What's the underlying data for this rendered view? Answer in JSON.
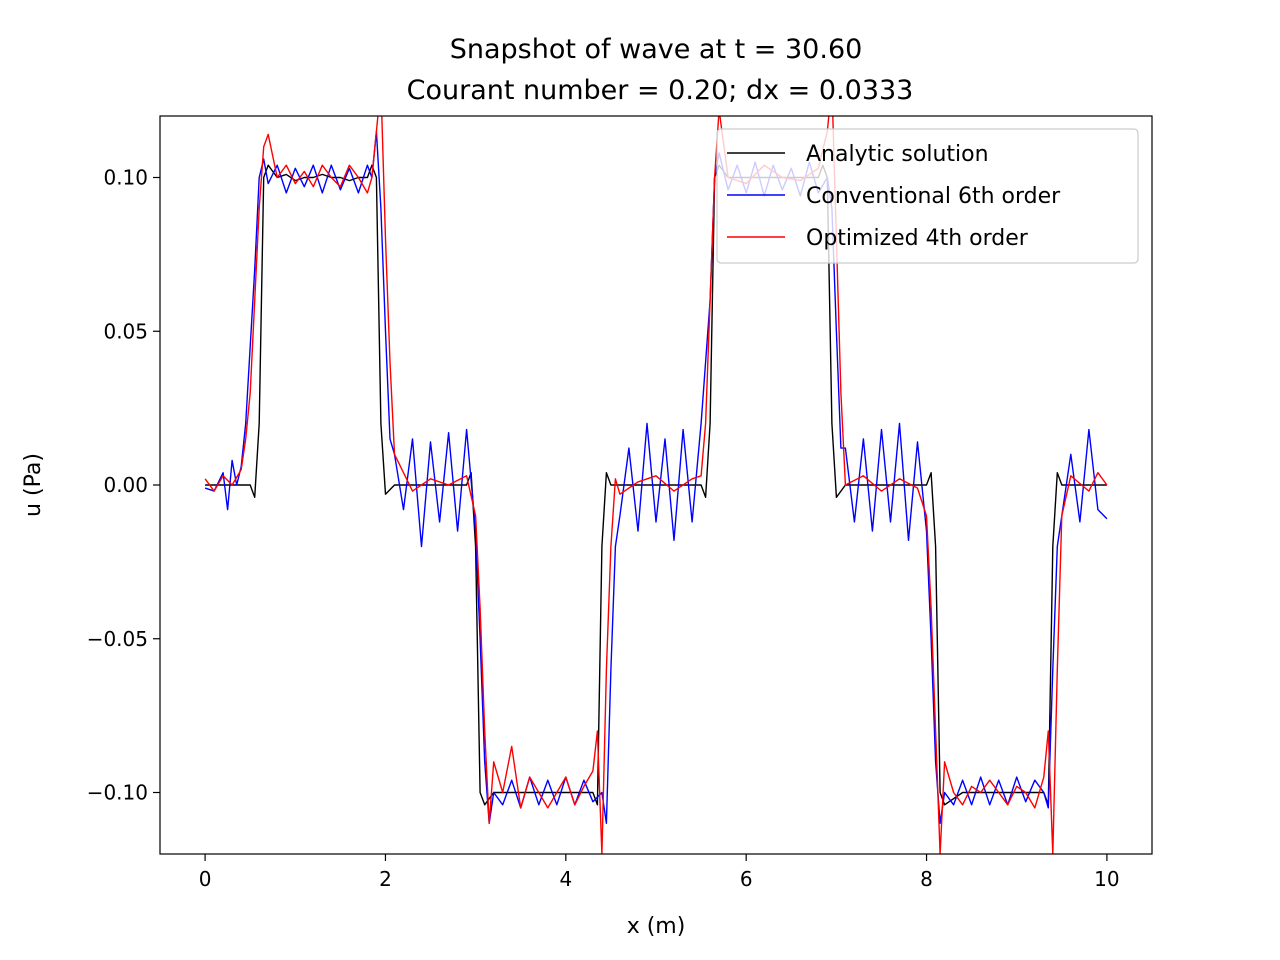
{
  "chart_data": {
    "type": "line",
    "title": "Snapshot of wave at t = 30.60",
    "subtitle": "Courant number = 0.20; dx = 0.0333",
    "xlabel": "x (m)",
    "ylabel": "u (Pa)",
    "xlim": [
      -0.5,
      10.5
    ],
    "ylim": [
      -0.12,
      0.12
    ],
    "xticks": [
      0,
      2,
      4,
      6,
      8,
      10
    ],
    "xtick_labels": [
      "0",
      "2",
      "4",
      "6",
      "8",
      "10"
    ],
    "yticks": [
      0.1,
      0.05,
      0.0,
      -0.05,
      -0.1
    ],
    "ytick_labels": [
      "0.10",
      "0.05",
      "0.00",
      "−0.05",
      "−0.10"
    ],
    "grid": false,
    "legend_position": "top-right",
    "series": [
      {
        "name": "Analytic solution",
        "color": "#000000",
        "x": [
          0.0,
          0.1,
          0.2,
          0.3,
          0.4,
          0.5,
          0.55,
          0.6,
          0.65,
          0.7,
          0.8,
          0.9,
          1.0,
          1.1,
          1.2,
          1.3,
          1.4,
          1.5,
          1.6,
          1.7,
          1.8,
          1.85,
          1.9,
          1.95,
          2.0,
          2.1,
          2.2,
          2.4,
          2.6,
          2.8,
          2.9,
          2.95,
          3.0,
          3.05,
          3.1,
          3.2,
          3.4,
          3.6,
          3.8,
          4.0,
          4.2,
          4.3,
          4.35,
          4.4,
          4.45,
          4.5,
          4.6,
          4.8,
          5.0,
          5.2,
          5.4,
          5.5,
          5.55,
          5.6,
          5.65,
          5.7,
          5.8,
          6.0,
          6.2,
          6.4,
          6.6,
          6.8,
          6.85,
          6.9,
          6.95,
          7.0,
          7.1,
          7.3,
          7.5,
          7.7,
          7.9,
          8.0,
          8.05,
          8.1,
          8.15,
          8.2,
          8.4,
          8.6,
          8.8,
          9.0,
          9.2,
          9.3,
          9.35,
          9.4,
          9.45,
          9.5,
          9.6,
          9.8,
          10.0
        ],
        "values": [
          0.0,
          0.0,
          0.0,
          0.0,
          0.0,
          0.0,
          -0.004,
          0.02,
          0.1,
          0.104,
          0.1,
          0.101,
          0.099,
          0.1,
          0.1,
          0.101,
          0.1,
          0.1,
          0.099,
          0.1,
          0.1,
          0.104,
          0.1,
          0.02,
          -0.003,
          0.0,
          0.0,
          0.0,
          0.0,
          0.0,
          0.0,
          0.004,
          -0.02,
          -0.1,
          -0.104,
          -0.1,
          -0.1,
          -0.1,
          -0.1,
          -0.1,
          -0.1,
          -0.1,
          -0.104,
          -0.02,
          0.004,
          0.0,
          0.0,
          0.0,
          0.0,
          0.0,
          0.0,
          0.0,
          -0.004,
          0.02,
          0.1,
          0.104,
          0.1,
          0.1,
          0.1,
          0.1,
          0.1,
          0.1,
          0.104,
          0.1,
          0.02,
          -0.004,
          0.0,
          0.0,
          0.0,
          0.0,
          0.0,
          0.0,
          0.004,
          -0.02,
          -0.1,
          -0.104,
          -0.1,
          -0.1,
          -0.1,
          -0.1,
          -0.1,
          -0.1,
          -0.104,
          -0.02,
          0.004,
          0.0,
          0.0,
          0.0,
          0.0
        ]
      },
      {
        "name": "Conventional 6th order",
        "color": "#0000ff",
        "x": [
          0.0,
          0.1,
          0.2,
          0.25,
          0.3,
          0.35,
          0.4,
          0.45,
          0.5,
          0.55,
          0.6,
          0.65,
          0.7,
          0.8,
          0.9,
          1.0,
          1.1,
          1.2,
          1.3,
          1.4,
          1.5,
          1.6,
          1.7,
          1.8,
          1.85,
          1.9,
          1.95,
          2.0,
          2.05,
          2.1,
          2.2,
          2.3,
          2.4,
          2.5,
          2.6,
          2.7,
          2.8,
          2.9,
          3.0,
          3.05,
          3.1,
          3.15,
          3.2,
          3.3,
          3.4,
          3.5,
          3.6,
          3.7,
          3.8,
          3.9,
          4.0,
          4.1,
          4.2,
          4.3,
          4.4,
          4.45,
          4.5,
          4.55,
          4.6,
          4.7,
          4.8,
          4.9,
          5.0,
          5.1,
          5.2,
          5.3,
          5.4,
          5.5,
          5.6,
          5.65,
          5.7,
          5.8,
          5.9,
          6.0,
          6.1,
          6.2,
          6.3,
          6.4,
          6.5,
          6.6,
          6.7,
          6.8,
          6.9,
          6.95,
          7.0,
          7.05,
          7.1,
          7.2,
          7.3,
          7.4,
          7.5,
          7.6,
          7.7,
          7.8,
          7.9,
          8.0,
          8.05,
          8.1,
          8.15,
          8.2,
          8.3,
          8.4,
          8.5,
          8.6,
          8.7,
          8.8,
          8.9,
          9.0,
          9.1,
          9.2,
          9.3,
          9.35,
          9.4,
          9.45,
          9.5,
          9.6,
          9.7,
          9.8,
          9.9,
          10.0
        ],
        "values": [
          -0.001,
          -0.002,
          0.004,
          -0.008,
          0.008,
          0.0,
          0.006,
          0.02,
          0.045,
          0.07,
          0.1,
          0.106,
          0.098,
          0.104,
          0.095,
          0.103,
          0.097,
          0.104,
          0.095,
          0.104,
          0.096,
          0.103,
          0.095,
          0.104,
          0.1,
          0.115,
          0.09,
          0.05,
          0.015,
          0.01,
          -0.008,
          0.015,
          -0.02,
          0.014,
          -0.012,
          0.017,
          -0.015,
          0.018,
          -0.015,
          -0.05,
          -0.09,
          -0.11,
          -0.1,
          -0.104,
          -0.096,
          -0.105,
          -0.095,
          -0.104,
          -0.096,
          -0.104,
          -0.095,
          -0.104,
          -0.096,
          -0.103,
          -0.1,
          -0.11,
          -0.06,
          -0.02,
          -0.01,
          0.012,
          -0.015,
          0.02,
          -0.012,
          0.015,
          -0.018,
          0.018,
          -0.012,
          0.02,
          0.06,
          0.1,
          0.108,
          0.096,
          0.104,
          0.095,
          0.105,
          0.094,
          0.104,
          0.096,
          0.103,
          0.094,
          0.105,
          0.095,
          0.1,
          0.09,
          0.05,
          0.012,
          0.012,
          -0.012,
          0.015,
          -0.015,
          0.018,
          -0.012,
          0.02,
          -0.018,
          0.014,
          -0.015,
          -0.05,
          -0.09,
          -0.11,
          -0.1,
          -0.104,
          -0.096,
          -0.104,
          -0.095,
          -0.104,
          -0.096,
          -0.104,
          -0.095,
          -0.103,
          -0.096,
          -0.1,
          -0.105,
          -0.06,
          -0.02,
          -0.01,
          0.01,
          -0.012,
          0.018,
          -0.008,
          -0.011
        ]
      },
      {
        "name": "Optimized 4th order",
        "color": "#ff0000",
        "x": [
          0.0,
          0.1,
          0.2,
          0.3,
          0.4,
          0.45,
          0.5,
          0.55,
          0.6,
          0.65,
          0.7,
          0.8,
          0.9,
          1.0,
          1.1,
          1.2,
          1.3,
          1.4,
          1.5,
          1.6,
          1.7,
          1.8,
          1.85,
          1.9,
          1.95,
          2.0,
          2.05,
          2.1,
          2.3,
          2.5,
          2.7,
          2.9,
          3.0,
          3.05,
          3.1,
          3.15,
          3.2,
          3.3,
          3.4,
          3.5,
          3.6,
          3.7,
          3.8,
          3.9,
          4.0,
          4.1,
          4.2,
          4.3,
          4.35,
          4.4,
          4.45,
          4.5,
          4.55,
          4.6,
          4.8,
          5.0,
          5.2,
          5.4,
          5.5,
          5.55,
          5.6,
          5.65,
          5.7,
          5.8,
          6.0,
          6.2,
          6.4,
          6.6,
          6.8,
          6.9,
          6.95,
          7.0,
          7.05,
          7.1,
          7.3,
          7.5,
          7.7,
          7.9,
          8.0,
          8.05,
          8.1,
          8.15,
          8.2,
          8.3,
          8.4,
          8.5,
          8.6,
          8.7,
          8.8,
          8.9,
          9.0,
          9.1,
          9.2,
          9.3,
          9.35,
          9.4,
          9.45,
          9.5,
          9.6,
          9.8,
          9.9,
          10.0
        ],
        "values": [
          0.002,
          -0.002,
          0.003,
          0.0,
          0.005,
          0.015,
          0.03,
          0.06,
          0.09,
          0.11,
          0.114,
          0.1,
          0.104,
          0.098,
          0.102,
          0.097,
          0.104,
          0.1,
          0.097,
          0.104,
          0.1,
          0.095,
          0.1,
          0.115,
          0.13,
          0.08,
          0.04,
          0.01,
          -0.002,
          0.002,
          0.0,
          0.003,
          -0.01,
          -0.04,
          -0.08,
          -0.11,
          -0.09,
          -0.1,
          -0.085,
          -0.105,
          -0.095,
          -0.1,
          -0.105,
          -0.1,
          -0.095,
          -0.104,
          -0.098,
          -0.093,
          -0.08,
          -0.12,
          -0.06,
          -0.02,
          0.002,
          -0.003,
          0.001,
          0.003,
          -0.002,
          0.002,
          0.003,
          0.02,
          0.06,
          0.1,
          0.122,
          0.1,
          0.098,
          0.104,
          0.1,
          0.099,
          0.103,
          0.115,
          0.13,
          0.08,
          0.03,
          0.0,
          0.003,
          -0.002,
          0.002,
          -0.001,
          -0.01,
          -0.04,
          -0.08,
          -0.12,
          -0.09,
          -0.1,
          -0.104,
          -0.098,
          -0.1,
          -0.096,
          -0.1,
          -0.104,
          -0.098,
          -0.1,
          -0.105,
          -0.095,
          -0.08,
          -0.12,
          -0.06,
          -0.01,
          0.003,
          -0.002,
          0.004,
          0.0
        ]
      }
    ]
  }
}
